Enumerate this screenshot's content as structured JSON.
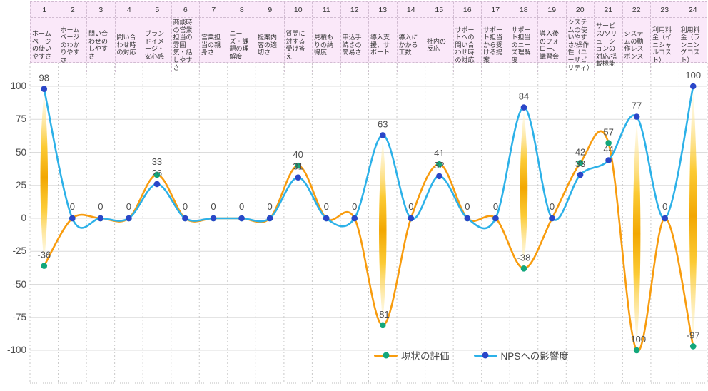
{
  "chart_data": {
    "type": "line",
    "title": "",
    "xlabel": "",
    "ylabel": "",
    "ylim": [
      -100,
      100
    ],
    "yticks": [
      100,
      75,
      50,
      25,
      0,
      -25,
      -50,
      -75,
      -100
    ],
    "grid": true,
    "legend_position": "bottom-center",
    "curve": "smooth-spline",
    "header_bg": "#FAE8F9",
    "highlight_columns": [
      1,
      13,
      18,
      22,
      24
    ],
    "highlight_gradient": [
      "#FFFBE8",
      "#F2A702"
    ],
    "categories": [
      {
        "num": "1",
        "label": "ホームページの使いやすさ"
      },
      {
        "num": "2",
        "label": "ホームページのわかりやすさ"
      },
      {
        "num": "3",
        "label": "問い合わせのしやすさ"
      },
      {
        "num": "4",
        "label": "問い合わせ時の対応"
      },
      {
        "num": "5",
        "label": "ブランドイメージ・安心感"
      },
      {
        "num": "6",
        "label": "商談時の営業担当の雰囲気・話しやすさ"
      },
      {
        "num": "7",
        "label": "営業担当の親身さ"
      },
      {
        "num": "8",
        "label": "ニーズ・課題の理解度"
      },
      {
        "num": "9",
        "label": "提案内容の適切さ"
      },
      {
        "num": "10",
        "label": "質問に対する受け答え"
      },
      {
        "num": "11",
        "label": "見積もりの納得度"
      },
      {
        "num": "12",
        "label": "申込手続きの簡易さ"
      },
      {
        "num": "13",
        "label": "導入支援、サポート"
      },
      {
        "num": "14",
        "label": "導入にかかる工数"
      },
      {
        "num": "15",
        "label": "社内の反応"
      },
      {
        "num": "16",
        "label": "サポートへの問い合わせ時の対応"
      },
      {
        "num": "17",
        "label": "サポート担当から受ける提案"
      },
      {
        "num": "18",
        "label": "サポート担当のニーズ理解度"
      },
      {
        "num": "19",
        "label": "導入後のフォロー、講習会"
      },
      {
        "num": "20",
        "label": "システムの使いやすさ/操作性（ユーザビリティ）"
      },
      {
        "num": "21",
        "label": "サービス/ソリューションの対応/搭載機能"
      },
      {
        "num": "22",
        "label": "システムの動作レスポンス"
      },
      {
        "num": "23",
        "label": "利用料金（イニシャルコスト）"
      },
      {
        "num": "24",
        "label": "利用料金（ランニングコスト）"
      }
    ],
    "series": [
      {
        "name": "現状の評価",
        "line_color": "#F89C0E",
        "marker_color": "#12A77B",
        "values": [
          -36,
          0,
          0,
          0,
          33,
          0,
          0,
          0,
          0,
          40,
          0,
          0,
          -81,
          0,
          41,
          0,
          0,
          -38,
          0,
          42,
          57,
          -100,
          0,
          -97
        ]
      },
      {
        "name": "NPSへの影響度",
        "line_color": "#2CB1E8",
        "marker_color": "#2A46C8",
        "values": [
          98,
          0,
          0,
          0,
          26,
          0,
          0,
          0,
          0,
          31,
          0,
          0,
          63,
          0,
          32,
          0,
          0,
          84,
          0,
          33,
          44,
          77,
          0,
          100
        ]
      }
    ]
  }
}
